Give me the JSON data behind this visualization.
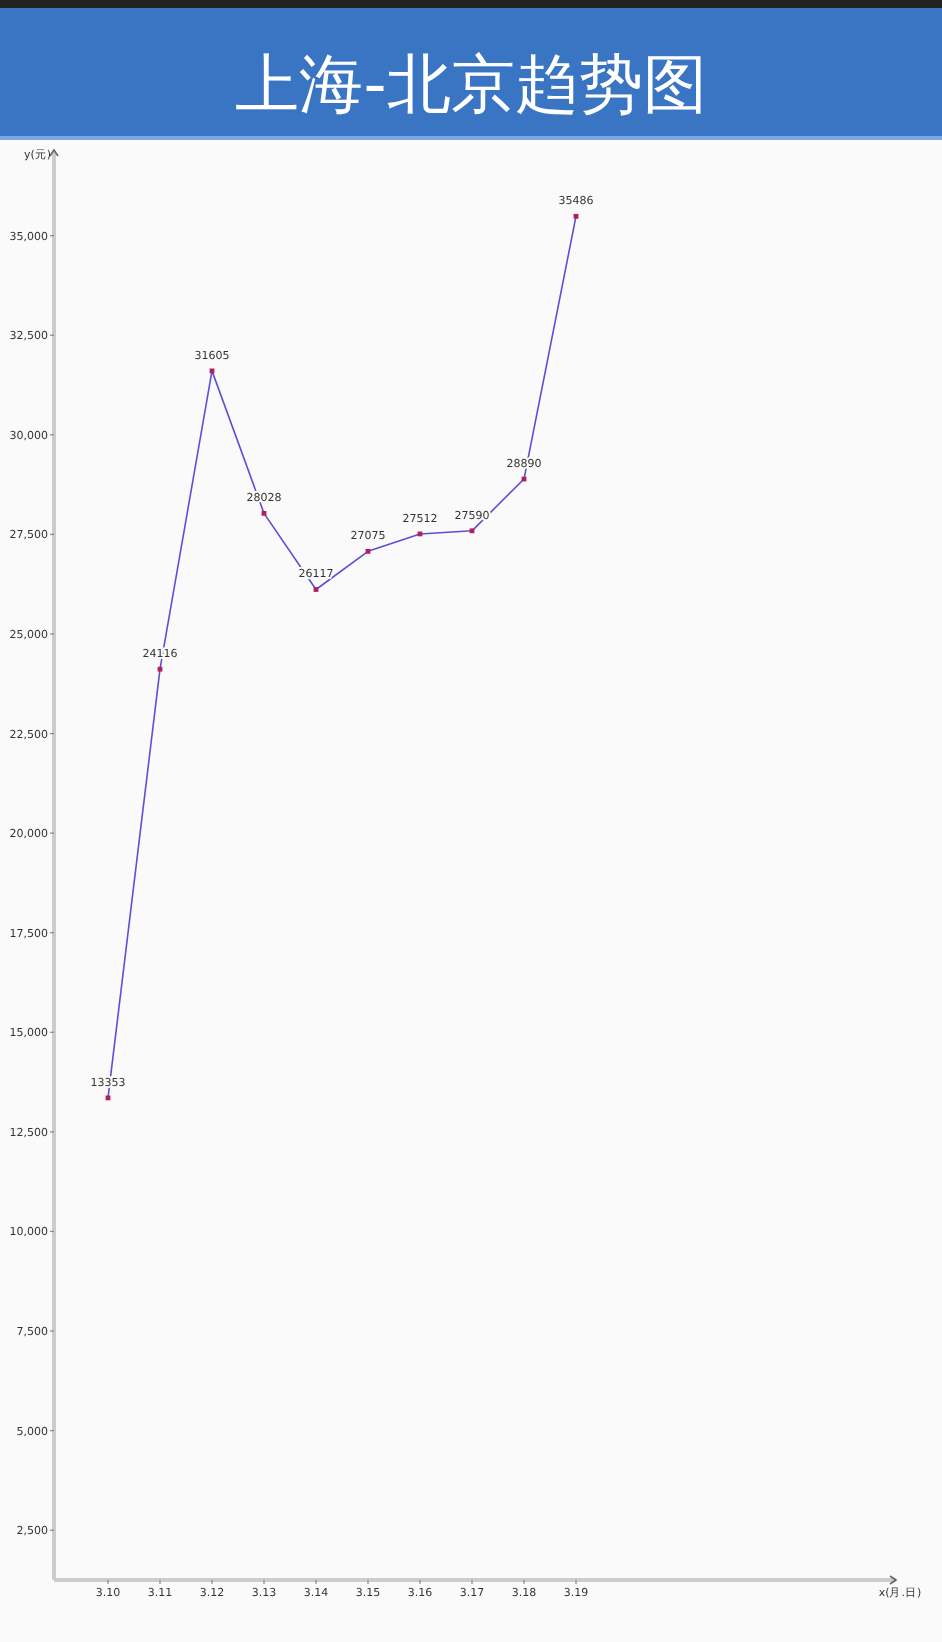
{
  "chart_data": {
    "type": "line",
    "title": "上海-北京趋势图",
    "annotations": [
      "x(月.日)"
    ],
    "ylabel": "y(元)",
    "categories": [
      "3.10",
      "3.11",
      "3.12",
      "3.13",
      "3.14",
      "3.15",
      "3.16",
      "3.17",
      "3.18",
      "3.19"
    ],
    "series": [
      {
        "color": "#5a50d8",
        "values": [
          13353,
          24116,
          31605,
          28028,
          26117,
          27075,
          27512,
          27590,
          28890,
          35486
        ]
      }
    ],
    "ylim": [
      1250,
      37000
    ],
    "yticks": [
      {
        "value": 2500,
        "label": "2,500"
      },
      {
        "value": 5000,
        "label": "5,000"
      },
      {
        "value": 7500,
        "label": "7,500"
      },
      {
        "value": 10000,
        "label": "10,000"
      },
      {
        "value": 12500,
        "label": "12,500"
      },
      {
        "value": 15000,
        "label": "15,000"
      },
      {
        "value": 17500,
        "label": "17,500"
      },
      {
        "value": 20000,
        "label": "20,000"
      },
      {
        "value": 22500,
        "label": "22,500"
      },
      {
        "value": 25000,
        "label": "25,000"
      },
      {
        "value": 27500,
        "label": "27,500"
      },
      {
        "value": 30000,
        "label": "30,000"
      },
      {
        "value": 32500,
        "label": "32,500"
      },
      {
        "value": 35000,
        "label": "35,000"
      }
    ],
    "data_labels": true,
    "marker": "square",
    "grid": false
  }
}
